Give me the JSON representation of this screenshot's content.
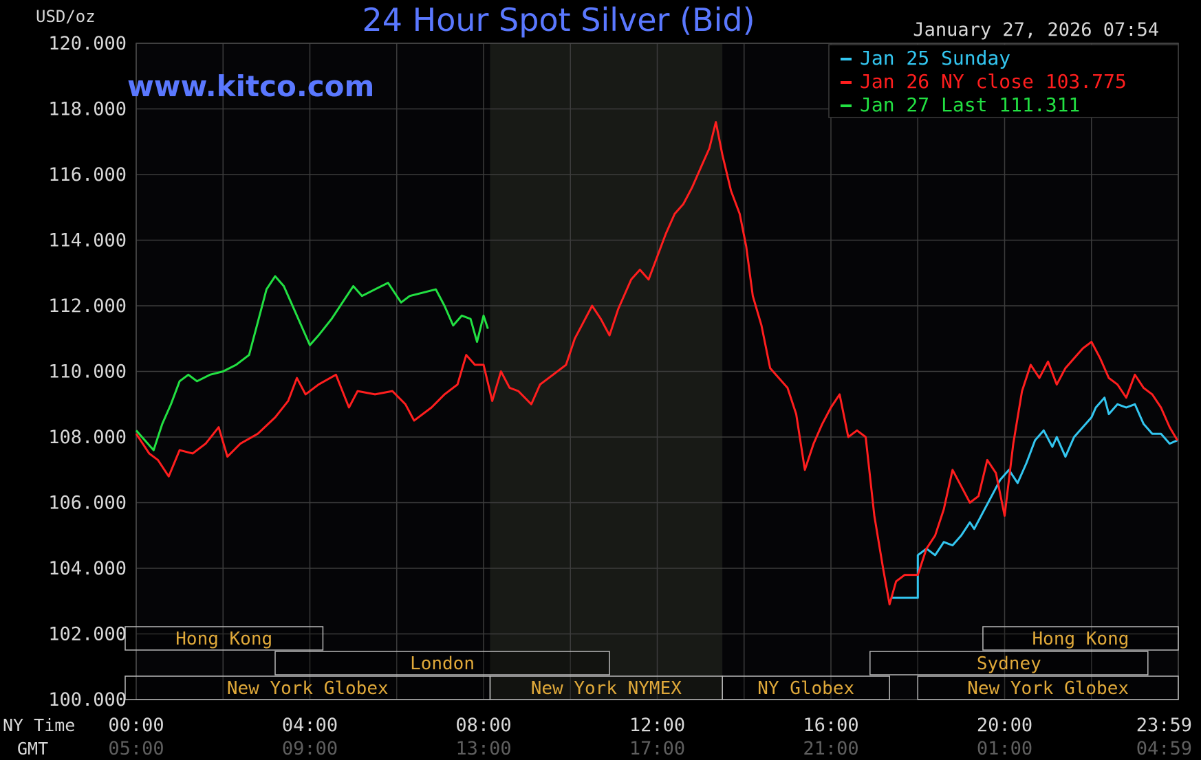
{
  "header": {
    "unit": "USD/oz",
    "title": "24 Hour Spot Silver (Bid)",
    "timestamp": "January 27, 2026 07:54",
    "watermark": "www.kitco.com"
  },
  "colors": {
    "background": "#050507",
    "grid": "#3c3c3c",
    "title": "#5a78ff",
    "text": "#d8d8d8",
    "session": "#e0a93a",
    "jan25": "#33c6f0",
    "jan26": "#ff1e1e",
    "jan27": "#22e042"
  },
  "legend": {
    "placement": "top-right",
    "items": [
      {
        "label": "Jan 25 Sunday",
        "color": "#33c6f0"
      },
      {
        "label": "Jan 26 NY close 103.775",
        "color": "#ff1e1e"
      },
      {
        "label": "Jan 27 Last 111.311",
        "color": "#22e042"
      }
    ]
  },
  "axes": {
    "ny_time_label": "NY Time",
    "gmt_label": "GMT"
  },
  "sessions": [
    {
      "label": "Hong Kong",
      "row": 0,
      "start": -0.3,
      "end": 4.3
    },
    {
      "label": "London",
      "row": 1,
      "start": 3.2,
      "end": 10.9
    },
    {
      "label": "New York Globex",
      "row": 2,
      "start": -0.3,
      "end": 8.15
    },
    {
      "label": "New York NYMEX",
      "row": 2,
      "start": 8.15,
      "end": 13.5
    },
    {
      "label": "NY Globex",
      "row": 2,
      "start": 13.5,
      "end": 17.35
    },
    {
      "label": "Sydney",
      "row": 1,
      "start": 16.9,
      "end": 23.3
    },
    {
      "label": "Hong Kong",
      "row": 0,
      "start": 19.5,
      "end": 24.0
    },
    {
      "label": "New York Globex",
      "row": 2,
      "start": 18.0,
      "end": 24.0
    }
  ],
  "chart_data": {
    "type": "line",
    "title": "24 Hour Spot Silver (Bid)",
    "ylabel": "USD/oz",
    "xlabel": "NY Time",
    "xlim": [
      0,
      24
    ],
    "ylim": [
      100,
      120
    ],
    "grid": true,
    "legend_position": "top-right",
    "nymex_shade": [
      8.15,
      13.5
    ],
    "y_ticks": [
      "120.000",
      "118.000",
      "116.000",
      "114.000",
      "112.000",
      "110.000",
      "108.000",
      "106.000",
      "104.000",
      "102.000",
      "100.000"
    ],
    "x_ticks": [
      {
        "x": 0,
        "ny": "00:00",
        "gmt": "05:00"
      },
      {
        "x": 4,
        "ny": "04:00",
        "gmt": "09:00"
      },
      {
        "x": 8,
        "ny": "08:00",
        "gmt": "13:00"
      },
      {
        "x": 12,
        "ny": "12:00",
        "gmt": "17:00"
      },
      {
        "x": 16,
        "ny": "16:00",
        "gmt": "21:00"
      },
      {
        "x": 20,
        "ny": "20:00",
        "gmt": "01:00"
      },
      {
        "x": 23.98,
        "ny": "23:59",
        "gmt": "04:59"
      }
    ],
    "series": [
      {
        "name": "Jan 25 Sunday",
        "color": "#33c6f0",
        "points": [
          [
            17.4,
            103.1
          ],
          [
            18.0,
            103.1
          ],
          [
            18.0,
            104.4
          ],
          [
            18.2,
            104.6
          ],
          [
            18.4,
            104.4
          ],
          [
            18.6,
            104.8
          ],
          [
            18.8,
            104.7
          ],
          [
            19.0,
            105.0
          ],
          [
            19.2,
            105.4
          ],
          [
            19.3,
            105.2
          ],
          [
            19.5,
            105.7
          ],
          [
            19.7,
            106.2
          ],
          [
            19.9,
            106.7
          ],
          [
            20.1,
            107.0
          ],
          [
            20.3,
            106.6
          ],
          [
            20.5,
            107.2
          ],
          [
            20.7,
            107.9
          ],
          [
            20.9,
            108.2
          ],
          [
            21.1,
            107.7
          ],
          [
            21.2,
            108.0
          ],
          [
            21.4,
            107.4
          ],
          [
            21.6,
            108.0
          ],
          [
            21.8,
            108.3
          ],
          [
            22.0,
            108.6
          ],
          [
            22.1,
            108.9
          ],
          [
            22.3,
            109.2
          ],
          [
            22.4,
            108.7
          ],
          [
            22.6,
            109.0
          ],
          [
            22.8,
            108.9
          ],
          [
            23.0,
            109.0
          ],
          [
            23.2,
            108.4
          ],
          [
            23.4,
            108.1
          ],
          [
            23.6,
            108.1
          ],
          [
            23.8,
            107.8
          ],
          [
            23.98,
            107.9
          ]
        ]
      },
      {
        "name": "Jan 26 NY close 103.775",
        "color": "#ff1e1e",
        "points": [
          [
            0.0,
            108.1
          ],
          [
            0.3,
            107.5
          ],
          [
            0.5,
            107.3
          ],
          [
            0.75,
            106.8
          ],
          [
            1.0,
            107.6
          ],
          [
            1.3,
            107.5
          ],
          [
            1.6,
            107.8
          ],
          [
            1.9,
            108.3
          ],
          [
            2.1,
            107.4
          ],
          [
            2.4,
            107.8
          ],
          [
            2.8,
            108.1
          ],
          [
            3.2,
            108.6
          ],
          [
            3.5,
            109.1
          ],
          [
            3.7,
            109.8
          ],
          [
            3.9,
            109.3
          ],
          [
            4.2,
            109.6
          ],
          [
            4.6,
            109.9
          ],
          [
            4.9,
            108.9
          ],
          [
            5.1,
            109.4
          ],
          [
            5.5,
            109.3
          ],
          [
            5.9,
            109.4
          ],
          [
            6.2,
            109.0
          ],
          [
            6.4,
            108.5
          ],
          [
            6.8,
            108.9
          ],
          [
            7.1,
            109.3
          ],
          [
            7.4,
            109.6
          ],
          [
            7.6,
            110.5
          ],
          [
            7.8,
            110.2
          ],
          [
            8.0,
            110.2
          ],
          [
            8.2,
            109.1
          ],
          [
            8.4,
            110.0
          ],
          [
            8.6,
            109.5
          ],
          [
            8.8,
            109.4
          ],
          [
            9.1,
            109.0
          ],
          [
            9.3,
            109.6
          ],
          [
            9.6,
            109.9
          ],
          [
            9.9,
            110.2
          ],
          [
            10.1,
            111.0
          ],
          [
            10.3,
            111.5
          ],
          [
            10.5,
            112.0
          ],
          [
            10.7,
            111.6
          ],
          [
            10.9,
            111.1
          ],
          [
            11.1,
            111.9
          ],
          [
            11.4,
            112.8
          ],
          [
            11.6,
            113.1
          ],
          [
            11.8,
            112.8
          ],
          [
            12.0,
            113.5
          ],
          [
            12.2,
            114.2
          ],
          [
            12.4,
            114.8
          ],
          [
            12.6,
            115.1
          ],
          [
            12.8,
            115.6
          ],
          [
            13.0,
            116.2
          ],
          [
            13.2,
            116.8
          ],
          [
            13.35,
            117.6
          ],
          [
            13.5,
            116.6
          ],
          [
            13.7,
            115.5
          ],
          [
            13.9,
            114.8
          ],
          [
            14.05,
            113.8
          ],
          [
            14.2,
            112.3
          ],
          [
            14.4,
            111.4
          ],
          [
            14.6,
            110.1
          ],
          [
            14.8,
            109.8
          ],
          [
            15.0,
            109.5
          ],
          [
            15.2,
            108.7
          ],
          [
            15.4,
            107.0
          ],
          [
            15.6,
            107.8
          ],
          [
            15.8,
            108.4
          ],
          [
            16.0,
            108.9
          ],
          [
            16.2,
            109.3
          ],
          [
            16.4,
            108.0
          ],
          [
            16.6,
            108.2
          ],
          [
            16.8,
            108.0
          ],
          [
            17.0,
            105.6
          ],
          [
            17.2,
            104.0
          ],
          [
            17.35,
            102.9
          ],
          [
            17.5,
            103.6
          ],
          [
            17.7,
            103.8
          ],
          [
            18.0,
            103.8
          ],
          [
            18.2,
            104.6
          ],
          [
            18.4,
            105.0
          ],
          [
            18.6,
            105.8
          ],
          [
            18.8,
            107.0
          ],
          [
            19.0,
            106.5
          ],
          [
            19.2,
            106.0
          ],
          [
            19.4,
            106.2
          ],
          [
            19.6,
            107.3
          ],
          [
            19.8,
            106.9
          ],
          [
            20.0,
            105.6
          ],
          [
            20.2,
            107.8
          ],
          [
            20.4,
            109.4
          ],
          [
            20.6,
            110.2
          ],
          [
            20.8,
            109.8
          ],
          [
            21.0,
            110.3
          ],
          [
            21.2,
            109.6
          ],
          [
            21.4,
            110.1
          ],
          [
            21.6,
            110.4
          ],
          [
            21.8,
            110.7
          ],
          [
            22.0,
            110.9
          ],
          [
            22.2,
            110.4
          ],
          [
            22.4,
            109.8
          ],
          [
            22.6,
            109.6
          ],
          [
            22.8,
            109.2
          ],
          [
            23.0,
            109.9
          ],
          [
            23.2,
            109.5
          ],
          [
            23.4,
            109.3
          ],
          [
            23.6,
            108.9
          ],
          [
            23.8,
            108.3
          ],
          [
            23.98,
            107.9
          ]
        ]
      },
      {
        "name": "Jan 27 Last 111.311",
        "color": "#22e042",
        "points": [
          [
            0.0,
            108.2
          ],
          [
            0.2,
            107.9
          ],
          [
            0.4,
            107.6
          ],
          [
            0.6,
            108.4
          ],
          [
            0.8,
            109.0
          ],
          [
            1.0,
            109.7
          ],
          [
            1.2,
            109.9
          ],
          [
            1.4,
            109.7
          ],
          [
            1.7,
            109.9
          ],
          [
            2.0,
            110.0
          ],
          [
            2.3,
            110.2
          ],
          [
            2.6,
            110.5
          ],
          [
            2.8,
            111.5
          ],
          [
            3.0,
            112.5
          ],
          [
            3.2,
            112.9
          ],
          [
            3.4,
            112.6
          ],
          [
            3.6,
            112.0
          ],
          [
            3.8,
            111.4
          ],
          [
            4.0,
            110.8
          ],
          [
            4.2,
            111.1
          ],
          [
            4.5,
            111.6
          ],
          [
            4.8,
            112.2
          ],
          [
            5.0,
            112.6
          ],
          [
            5.2,
            112.3
          ],
          [
            5.5,
            112.5
          ],
          [
            5.8,
            112.7
          ],
          [
            6.1,
            112.1
          ],
          [
            6.3,
            112.3
          ],
          [
            6.6,
            112.4
          ],
          [
            6.9,
            112.5
          ],
          [
            7.1,
            112.0
          ],
          [
            7.3,
            111.4
          ],
          [
            7.5,
            111.7
          ],
          [
            7.7,
            111.6
          ],
          [
            7.85,
            110.9
          ],
          [
            8.0,
            111.7
          ],
          [
            8.1,
            111.3
          ]
        ]
      }
    ]
  }
}
